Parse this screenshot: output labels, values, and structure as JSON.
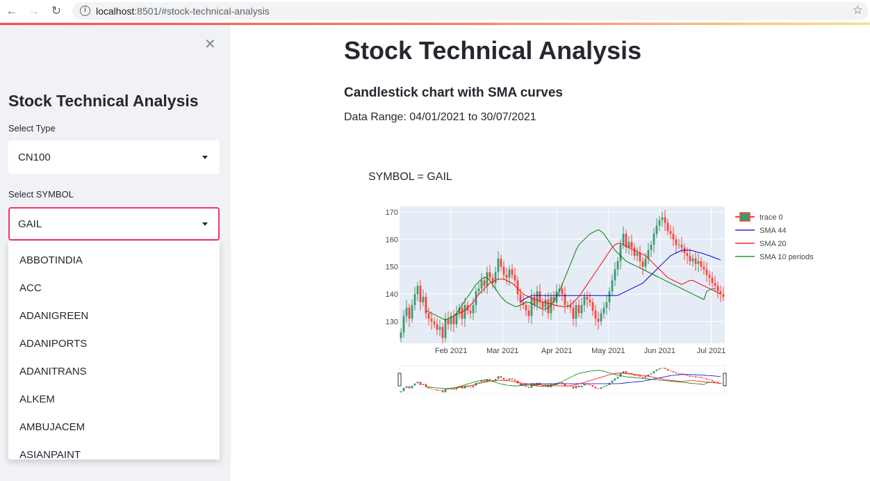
{
  "browser": {
    "url_host": "localhost",
    "url_rest": ":8501/#stock-technical-analysis"
  },
  "sidebar": {
    "title": "Stock Technical Analysis",
    "type_label": "Select Type",
    "type_value": "CN100",
    "symbol_label": "Select SYMBOL",
    "symbol_value": "GAIL",
    "options": [
      "ABBOTINDIA",
      "ACC",
      "ADANIGREEN",
      "ADANIPORTS",
      "ADANITRANS",
      "ALKEM",
      "AMBUJACEM",
      "ASIANPAINT"
    ]
  },
  "main": {
    "title": "Stock Technical Analysis",
    "subtitle": "Candlestick chart with SMA curves",
    "date_range": "Data Range: 04/01/2021 to 30/07/2021"
  },
  "chart_data": {
    "type": "line",
    "title": "SYMBOL = GAIL",
    "xlabel": "",
    "ylabel": "",
    "ylim": [
      122,
      172
    ],
    "yticks": [
      130,
      140,
      150,
      160,
      170
    ],
    "xticks": [
      "Feb 2021",
      "Mar 2021",
      "Apr 2021",
      "May 2021",
      "Jun 2021",
      "Jul 2021"
    ],
    "legend_position": "right",
    "colors": {
      "up": "#3d9970",
      "down": "#ff4136",
      "sma44": "#0000cc",
      "sma20": "#ff0000",
      "sma10": "#008000"
    },
    "series": [
      {
        "name": "trace 0",
        "kind": "candlestick",
        "values": [
          126,
          132,
          135,
          131,
          136,
          140,
          143,
          137,
          139,
          133,
          131,
          130,
          129,
          127,
          128,
          124,
          131,
          129,
          132,
          129,
          133,
          135,
          131,
          136,
          134,
          133,
          136,
          141,
          142,
          145,
          143,
          148,
          146,
          144,
          148,
          153,
          150,
          147,
          146,
          149,
          147,
          145,
          140,
          137,
          136,
          134,
          132,
          139,
          136,
          141,
          137,
          135,
          138,
          133,
          139,
          137,
          141,
          142,
          140,
          136,
          136,
          135,
          131,
          136,
          133,
          136,
          139,
          138,
          137,
          134,
          131,
          130,
          133,
          135,
          137,
          141,
          145,
          149,
          152,
          158,
          162,
          157,
          159,
          157,
          154,
          155,
          152,
          150,
          153,
          156,
          158,
          162,
          165,
          167,
          168,
          166,
          163,
          162,
          160,
          158,
          158,
          157,
          155,
          154,
          152,
          153,
          151,
          152,
          150,
          149,
          147,
          146,
          144,
          143,
          141,
          140,
          139
        ]
      },
      {
        "name": "SMA 44",
        "kind": "line",
        "x_start": 43,
        "values": [
          137,
          138,
          138.5,
          139,
          139.5,
          139.5,
          139.5,
          139.5,
          139.5,
          139.5,
          139.5,
          139.5,
          139.5,
          139.5,
          139.5,
          139.5,
          139.5,
          139.5,
          139.5,
          139.5,
          139.5,
          139.5,
          139.5,
          139.5,
          139.5,
          139.5,
          139.5,
          139.5,
          139.5,
          139.5,
          139.5,
          139.5,
          139.5,
          139.5,
          139.5,
          139.5,
          140,
          140.5,
          141,
          141.5,
          142,
          142.5,
          143,
          143.5,
          144,
          145,
          146,
          147,
          148,
          149,
          150,
          151,
          152,
          153,
          154,
          154.5,
          155,
          155.5,
          156,
          156,
          156,
          156,
          155.8,
          155.5,
          155.2,
          155,
          154.7,
          154.3,
          154,
          153.6,
          153.2,
          152.8,
          152.5
        ]
      },
      {
        "name": "SMA 20",
        "kind": "line",
        "x_start": 19,
        "values": [
          132,
          132.5,
          133,
          133.5,
          134,
          135,
          136,
          137,
          138.5,
          140,
          141,
          142,
          143,
          144,
          144.5,
          145,
          145.5,
          145.5,
          145.5,
          145,
          144.5,
          144,
          143,
          142,
          141,
          140,
          139.5,
          139,
          138.5,
          138,
          138,
          137.5,
          137,
          137,
          136.5,
          136.5,
          136,
          135.8,
          135.6,
          135.5,
          135.4,
          135.5,
          136,
          137,
          138,
          139,
          140.5,
          142,
          143.5,
          145,
          146.5,
          148,
          149.5,
          151,
          152.5,
          154,
          155.5,
          157,
          158,
          158.5,
          158.5,
          158,
          157.5,
          157,
          156.5,
          156,
          155.5,
          155,
          154.5,
          154,
          153,
          152,
          151,
          150,
          149,
          148,
          147,
          146,
          145.5,
          145,
          144.5,
          144,
          143.5,
          144,
          144.5,
          145,
          145,
          144.5,
          144,
          143.5,
          143,
          142.5,
          142,
          141.5,
          141,
          140.5,
          140
        ]
      },
      {
        "name": "SMA 10 periods",
        "kind": "line",
        "x_start": 9,
        "values": [
          134,
          133.5,
          133,
          132.5,
          132,
          131.5,
          131,
          130.5,
          131,
          131.5,
          132,
          133,
          134.5,
          136,
          137.5,
          139,
          140.5,
          142,
          143.5,
          144.5,
          145.5,
          146,
          146,
          145,
          143.5,
          142,
          140.5,
          139,
          138,
          137,
          136.5,
          136,
          135.5,
          135.5,
          136,
          136.5,
          137,
          137,
          136.5,
          136,
          135.5,
          135,
          134.5,
          134.5,
          135,
          136,
          137.5,
          139,
          141,
          143.5,
          146,
          148.5,
          151,
          153.5,
          156,
          158,
          159,
          160,
          161,
          162,
          162.5,
          163,
          163.5,
          163,
          162,
          160.5,
          159,
          157.5,
          156,
          155,
          154,
          153,
          152,
          151.5,
          151,
          150.5,
          150,
          149.5,
          149,
          148.5,
          148,
          147.5,
          147,
          146.5,
          146,
          145.5,
          145,
          144.5,
          144,
          143.5,
          143,
          142.5,
          142,
          141.5,
          141,
          140.5,
          140,
          139.5,
          139,
          138.5,
          138,
          141,
          141.5,
          142,
          142
        ]
      }
    ]
  }
}
